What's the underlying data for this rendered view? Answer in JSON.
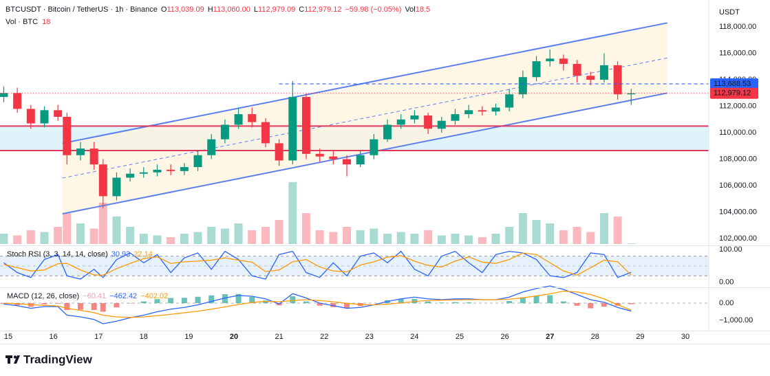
{
  "header": {
    "symbol": "BTCUSDT · Bitcoin / TetherUS · 1h · Binance",
    "ohlc": [
      {
        "key": "O",
        "value": "113,039.09"
      },
      {
        "key": "H",
        "value": "113,060.00"
      },
      {
        "key": "L",
        "value": "112,979.09"
      },
      {
        "key": "C",
        "value": "112,979.12"
      }
    ],
    "change": "−59.98 (−0.05%)",
    "volume_key": "Vol",
    "volume": "18.5",
    "volume_line": "Vol · BTC",
    "volume_value": "18"
  },
  "currency": "USDT",
  "brand": "TradingView",
  "chart_data": [
    {
      "type": "candlestick",
      "x": [
        14.9,
        15.2,
        15.5,
        15.8,
        16.1,
        16.3,
        16.6,
        16.9,
        17.1,
        17.4,
        17.7,
        18.0,
        18.3,
        18.6,
        18.9,
        19.2,
        19.5,
        19.8,
        20.1,
        20.4,
        20.7,
        21.0,
        21.3,
        21.6,
        21.9,
        22.2,
        22.5,
        22.8,
        23.1,
        23.4,
        23.7,
        24.0,
        24.3,
        24.6,
        24.9,
        25.2,
        25.5,
        25.8,
        26.1,
        26.4,
        26.7,
        27.0,
        27.3,
        27.6,
        27.9,
        28.2,
        28.5,
        28.8
      ],
      "open": [
        112700,
        113000,
        111800,
        110700,
        111700,
        111200,
        108300,
        108800,
        107600,
        105200,
        106600,
        106900,
        107000,
        107200,
        107100,
        107400,
        108300,
        109500,
        110600,
        111400,
        110800,
        109200,
        107900,
        112700,
        108400,
        108200,
        108000,
        107600,
        108300,
        109500,
        110600,
        111000,
        111300,
        110300,
        110900,
        111400,
        111700,
        111600,
        111900,
        112900,
        114200,
        115400,
        115600,
        115200,
        114300,
        114000,
        115100,
        112900
      ],
      "high": [
        113500,
        113400,
        112100,
        112000,
        112100,
        111500,
        109300,
        109300,
        108000,
        107000,
        107300,
        107400,
        107600,
        107600,
        107700,
        108700,
        109900,
        111000,
        111900,
        111900,
        111100,
        109500,
        113900,
        113000,
        108800,
        108600,
        108300,
        108700,
        109900,
        111000,
        111400,
        111700,
        111500,
        111200,
        111800,
        112100,
        112000,
        112200,
        113300,
        114700,
        115800,
        116300,
        115900,
        115500,
        114600,
        116000,
        115400,
        113300
      ],
      "low": [
        112300,
        111500,
        110300,
        110400,
        110900,
        107600,
        107900,
        107200,
        104300,
        104900,
        106300,
        106600,
        106700,
        106800,
        106800,
        107100,
        108000,
        109200,
        110300,
        110400,
        108900,
        107500,
        107600,
        108000,
        107800,
        107600,
        106700,
        107400,
        108000,
        109300,
        110300,
        110700,
        109900,
        110000,
        110600,
        111100,
        111300,
        111300,
        111600,
        112600,
        113900,
        115000,
        114700,
        113800,
        113600,
        113800,
        112500,
        112100
      ],
      "close": [
        113000,
        111800,
        110700,
        111700,
        111200,
        108300,
        108800,
        107600,
        105200,
        106600,
        106900,
        107000,
        107200,
        107100,
        107400,
        108300,
        109500,
        110600,
        111400,
        110800,
        109200,
        107900,
        112700,
        108400,
        108200,
        108000,
        107600,
        108300,
        109500,
        110600,
        111000,
        111300,
        110300,
        110900,
        111400,
        111700,
        111600,
        111900,
        112900,
        114200,
        115400,
        115600,
        115200,
        114300,
        114000,
        115100,
        112900,
        112979.12
      ],
      "up_color": "#089981",
      "down_color": "#f23645",
      "volume": {
        "values": [
          300,
          250,
          400,
          350,
          500,
          900,
          600,
          450,
          1200,
          800,
          500,
          300,
          250,
          200,
          300,
          350,
          500,
          450,
          600,
          400,
          500,
          700,
          1800,
          900,
          400,
          350,
          500,
          400,
          450,
          300,
          350,
          300,
          400,
          250,
          300,
          250,
          200,
          300,
          500,
          900,
          700,
          600,
          400,
          500,
          350,
          900,
          800,
          18
        ],
        "ylim": [
          0,
          4000
        ]
      },
      "channel": {
        "color": "#5b7ff0",
        "fill": "#fff3dc",
        "x": [
          16.2,
          29.6
        ],
        "upper": [
          109200,
          118300
        ],
        "middle": [
          106570,
          115650
        ],
        "lower": [
          103870,
          113000
        ]
      },
      "zone": {
        "top": 110500,
        "bottom": 108650,
        "line_color": "#e0375a",
        "fill": "#dff3fb"
      },
      "price_lines": [
        {
          "value": 113688.53,
          "label": "113,688.53",
          "color": "#2962ff",
          "start": 21.0,
          "style": "dashed"
        },
        {
          "value": 112979.12,
          "label": "112,979.12",
          "color": "#f23645",
          "start": 14.82,
          "style": "dotted"
        }
      ],
      "xlim": [
        14.817,
        30.518
      ],
      "xticks": [
        15,
        16,
        17,
        18,
        19,
        20,
        21,
        22,
        23,
        24,
        25,
        26,
        27,
        28,
        29,
        30
      ],
      "xticks_bold": [
        20,
        27
      ],
      "ylim": [
        101480,
        120030
      ],
      "yticks": [
        {
          "value": 102000,
          "label": "102,000.00"
        },
        {
          "value": 104000,
          "label": "104,000.00"
        },
        {
          "value": 106000,
          "label": "106,000.00"
        },
        {
          "value": 108000,
          "label": "108,000.00"
        },
        {
          "value": 110000,
          "label": "110,000.00"
        },
        {
          "value": 112000,
          "label": "112,000.00"
        },
        {
          "value": 114000,
          "label": "114,000.00"
        },
        {
          "value": 116000,
          "label": "116,000.00"
        },
        {
          "value": 118000,
          "label": "118,000.00"
        }
      ]
    },
    {
      "type": "line",
      "title": "Stoch RSI (3, 3, 14, 14, close)",
      "legend_values": [
        "30.93",
        "22.14"
      ],
      "series": [
        {
          "color": "#2962ff",
          "values": [
            60,
            30,
            15,
            70,
            85,
            20,
            10,
            40,
            15,
            70,
            90,
            60,
            85,
            30,
            75,
            90,
            40,
            95,
            70,
            20,
            10,
            85,
            95,
            30,
            15,
            60,
            20,
            80,
            90,
            60,
            95,
            40,
            20,
            80,
            95,
            60,
            30,
            85,
            95,
            90,
            70,
            20,
            15,
            30,
            90,
            85,
            15,
            30.93
          ]
        },
        {
          "color": "#ff9800",
          "values": [
            55,
            45,
            35,
            38,
            57,
            58,
            38,
            23,
            22,
            42,
            58,
            73,
            78,
            58,
            63,
            65,
            68,
            75,
            68,
            62,
            33,
            38,
            63,
            70,
            47,
            35,
            32,
            53,
            63,
            77,
            82,
            65,
            52,
            47,
            65,
            78,
            62,
            58,
            70,
            90,
            85,
            60,
            35,
            22,
            45,
            68,
            63,
            22.14
          ]
        }
      ],
      "hlines": [
        80,
        50,
        20
      ],
      "band_fill": "#e6f1fc",
      "ylim": [
        -13,
        111
      ],
      "yticks": [
        {
          "value": 100,
          "label": "100.00"
        },
        {
          "value": 0,
          "label": "0.00"
        }
      ]
    },
    {
      "type": "macd",
      "title": "MACD (12, 26, close)",
      "legend_values": [
        "−60.41",
        "−462.42",
        "−402.02"
      ],
      "legend_colors": [
        "#f7a1a8",
        "#2962ff",
        "#ff9800"
      ],
      "histogram": {
        "pos_color": "#26a69a",
        "neg_color": "#ef5350",
        "values": [
          -50,
          -120,
          -210,
          -70,
          -30,
          -400,
          -380,
          -400,
          -500,
          -250,
          -20,
          100,
          230,
          300,
          310,
          370,
          450,
          520,
          530,
          360,
          150,
          -130,
          400,
          100,
          -150,
          -230,
          -290,
          -170,
          0,
          160,
          240,
          250,
          100,
          30,
          60,
          50,
          0,
          0,
          120,
          340,
          430,
          460,
          100,
          -150,
          -300,
          -200,
          -150,
          -60.41
        ]
      },
      "series": [
        {
          "color": "#2962ff",
          "values": [
            -50,
            -150,
            -300,
            -200,
            -200,
            -700,
            -800,
            -950,
            -1200,
            -1050,
            -850,
            -700,
            -500,
            -350,
            -250,
            -100,
            100,
            300,
            450,
            400,
            250,
            -50,
            550,
            300,
            0,
            -150,
            -300,
            -250,
            -100,
            100,
            250,
            350,
            250,
            200,
            250,
            250,
            200,
            200,
            350,
            650,
            850,
            1000,
            800,
            500,
            200,
            50,
            -250,
            -462.42
          ]
        },
        {
          "color": "#ff9800",
          "values": [
            0,
            -30,
            -90,
            -130,
            -170,
            -300,
            -420,
            -550,
            -700,
            -800,
            -830,
            -800,
            -730,
            -650,
            -560,
            -470,
            -350,
            -220,
            -80,
            40,
            100,
            80,
            150,
            200,
            150,
            80,
            -10,
            -80,
            -100,
            -60,
            10,
            100,
            150,
            170,
            190,
            200,
            200,
            200,
            230,
            310,
            420,
            540,
            700,
            650,
            500,
            250,
            -100,
            -402.02
          ]
        }
      ],
      "ylim": [
        -1560,
        840
      ],
      "yticks": [
        {
          "value": 0,
          "label": "0.00"
        },
        {
          "value": -1000,
          "label": "−1,000.00"
        }
      ]
    }
  ]
}
